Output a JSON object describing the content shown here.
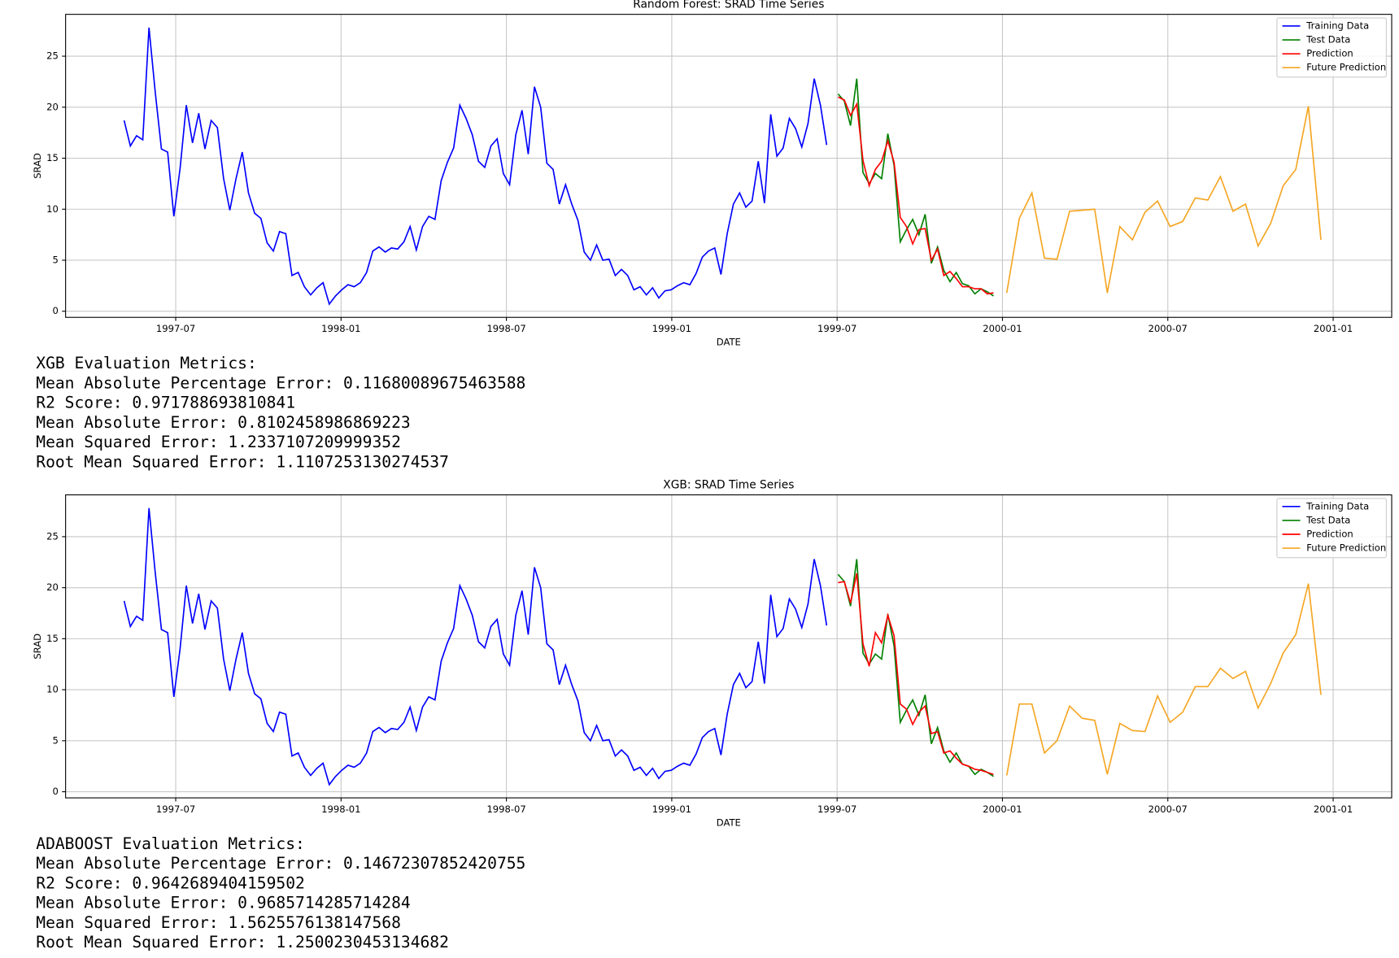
{
  "chart_data": [
    {
      "type": "line",
      "title": "Random Forest: SRAD Time Series",
      "xlabel": "DATE",
      "ylabel": "SRAD",
      "xlim": [
        1997.167,
        2001.177
      ],
      "ylim": [
        -0.6,
        29.1
      ],
      "xticks": [
        {
          "value": 1997.5,
          "label": "1997-07"
        },
        {
          "value": 1998.0,
          "label": "1998-01"
        },
        {
          "value": 1998.5,
          "label": "1998-07"
        },
        {
          "value": 1999.0,
          "label": "1999-01"
        },
        {
          "value": 1999.5,
          "label": "1999-07"
        },
        {
          "value": 2000.0,
          "label": "2000-01"
        },
        {
          "value": 2000.5,
          "label": "2000-07"
        },
        {
          "value": 2001.0,
          "label": "2001-01"
        }
      ],
      "yticks": [
        0,
        5,
        10,
        15,
        20,
        25
      ],
      "grid": true,
      "legend": "upper right",
      "series": [
        {
          "name": "Training Data",
          "color": "#0000ff",
          "x": [
            1997.344,
            1997.3628,
            1997.3816,
            1997.4004,
            1997.4192,
            1997.438,
            1997.4568,
            1997.4756,
            1997.4944,
            1997.5132,
            1997.532,
            1997.5508,
            1997.5696,
            1997.5884,
            1997.6072,
            1997.626,
            1997.6448,
            1997.6636,
            1997.6824,
            1997.7012,
            1997.72,
            1997.7388,
            1997.7576,
            1997.7764,
            1997.7952,
            1997.814,
            1997.8328,
            1997.8516,
            1997.8704,
            1997.8892,
            1997.908,
            1997.9268,
            1997.9456,
            1997.9644,
            1997.9832,
            1998.002,
            1998.0208,
            1998.0396,
            1998.0584,
            1998.0772,
            1998.096,
            1998.1148,
            1998.1336,
            1998.1524,
            1998.1712,
            1998.19,
            1998.2088,
            1998.2276,
            1998.2464,
            1998.2652,
            1998.284,
            1998.3028,
            1998.3216,
            1998.3404,
            1998.3592,
            1998.378,
            1998.3968,
            1998.4156,
            1998.4344,
            1998.4532,
            1998.472,
            1998.4908,
            1998.5096,
            1998.5284,
            1998.5472,
            1998.566,
            1998.5848,
            1998.6036,
            1998.6224,
            1998.6412,
            1998.66,
            1998.6788,
            1998.6976,
            1998.7164,
            1998.7352,
            1998.754,
            1998.7728,
            1998.7916,
            1998.8104,
            1998.8292,
            1998.848,
            1998.8668,
            1998.8856,
            1998.9044,
            1998.9232,
            1998.942,
            1998.9608,
            1998.9796,
            1998.9984,
            1999.0172,
            1999.036,
            1999.0548,
            1999.0736,
            1999.0924,
            1999.1112,
            1999.13,
            1999.1488,
            1999.1676,
            1999.1864,
            1999.2052,
            1999.224,
            1999.2428,
            1999.2616,
            1999.2804,
            1999.2992,
            1999.318,
            1999.3368,
            1999.3556,
            1999.3744,
            1999.3932,
            1999.412,
            1999.4308,
            1999.4496,
            1999.4684
          ],
          "values": [
            18.7,
            16.2,
            17.2,
            16.8,
            27.8,
            21.5,
            15.9,
            15.6,
            9.3,
            14,
            20.2,
            16.5,
            19.4,
            15.9,
            18.7,
            18.0,
            13,
            9.9,
            13,
            15.6,
            11.6,
            9.6,
            9.1,
            6.7,
            5.9,
            7.8,
            7.6,
            3.5,
            3.8,
            2.4,
            1.6,
            2.3,
            2.8,
            0.7,
            1.5,
            2.1,
            2.6,
            2.4,
            2.8,
            3.8,
            5.9,
            6.3,
            5.8,
            6.2,
            6.1,
            6.8,
            8.3,
            6.0,
            8.3,
            9.3,
            9.0,
            12.8,
            14.6,
            16.0,
            20.2,
            18.9,
            17.3,
            14.7,
            14.1,
            16.2,
            16.9,
            13.5,
            12.4,
            17.3,
            19.7,
            15.4,
            22.0,
            20.0,
            14.5,
            13.9,
            10.5,
            12.4,
            10.5,
            8.9,
            5.8,
            5.0,
            6.5,
            5.0,
            5.1,
            3.5,
            4.1,
            3.5,
            2.1,
            2.4,
            1.6,
            2.3,
            1.3,
            2.0,
            2.1,
            2.5,
            2.8,
            2.6,
            3.7,
            5.3,
            5.9,
            6.2,
            3.6,
            7.6,
            10.5,
            11.6,
            10.2,
            10.8,
            14.7,
            10.6,
            19.3,
            15.2,
            16.0,
            18.9,
            17.9,
            16.1,
            18.4,
            22.8,
            20.2,
            16.3
          ]
        },
        {
          "name": "Test Data",
          "color": "#008000",
          "x": [
            1999.503,
            1999.5218,
            1999.5406,
            1999.5594,
            1999.5782,
            1999.597,
            1999.6158,
            1999.6346,
            1999.6534,
            1999.6722,
            1999.691,
            1999.7098,
            1999.7286,
            1999.7474,
            1999.7662,
            1999.785,
            1999.8038,
            1999.8226,
            1999.8414,
            1999.8602,
            1999.879,
            1999.8978,
            1999.9166,
            1999.9354,
            1999.9542,
            1999.973
          ],
          "values": [
            21.3,
            20.6,
            18.2,
            22.8,
            13.6,
            12.5,
            13.5,
            13.0,
            17.4,
            14.3,
            6.8,
            8.0,
            9.0,
            7.5,
            9.5,
            4.7,
            6.3,
            4.0,
            2.9,
            3.8,
            2.7,
            2.5,
            1.7,
            2.2,
            1.9,
            1.5
          ]
        },
        {
          "name": "Prediction",
          "color": "#ff0000",
          "x": [
            1999.503,
            1999.5218,
            1999.5406,
            1999.5594,
            1999.5782,
            1999.597,
            1999.6158,
            1999.6346,
            1999.6534,
            1999.6722,
            1999.691,
            1999.7098,
            1999.7286,
            1999.7474,
            1999.7662,
            1999.785,
            1999.8038,
            1999.8226,
            1999.8414,
            1999.8602,
            1999.879,
            1999.8978,
            1999.9166,
            1999.9354,
            1999.9542,
            1999.973
          ],
          "values": [
            21.0,
            20.7,
            19.2,
            20.3,
            14.8,
            12.3,
            13.9,
            14.7,
            16.7,
            14.6,
            9.2,
            8.3,
            6.6,
            8.0,
            8.1,
            5.0,
            6.1,
            3.5,
            3.9,
            3.2,
            2.4,
            2.4,
            2.2,
            2.2,
            1.7,
            1.8
          ]
        },
        {
          "name": "Future Prediction",
          "color": "#f5a623",
          "x": [
            2000.013,
            2000.051,
            2000.089,
            2000.127,
            2000.165,
            2000.203,
            2000.241,
            2000.279,
            2000.317,
            2000.355,
            2000.393,
            2000.431,
            2000.469,
            2000.507,
            2000.545,
            2000.583,
            2000.621,
            2000.659,
            2000.697,
            2000.735,
            2000.773,
            2000.811,
            2000.849,
            2000.887,
            2000.925,
            2000.963
          ],
          "values": [
            1.8,
            9.1,
            11.6,
            5.2,
            5.1,
            9.8,
            9.9,
            10.0,
            1.8,
            8.3,
            7.0,
            9.7,
            10.8,
            8.3,
            8.8,
            11.1,
            10.9,
            13.2,
            9.8,
            10.5,
            6.4,
            8.6,
            12.3,
            13.9,
            20.1,
            7.0
          ]
        }
      ]
    },
    {
      "type": "line",
      "title": "XGB: SRAD Time Series",
      "xlabel": "DATE",
      "ylabel": "SRAD",
      "xlim": [
        1997.167,
        2001.177
      ],
      "ylim": [
        -0.6,
        29.1
      ],
      "xticks": [
        {
          "value": 1997.5,
          "label": "1997-07"
        },
        {
          "value": 1998.0,
          "label": "1998-01"
        },
        {
          "value": 1998.5,
          "label": "1998-07"
        },
        {
          "value": 1999.0,
          "label": "1999-01"
        },
        {
          "value": 1999.5,
          "label": "1999-07"
        },
        {
          "value": 2000.0,
          "label": "2000-01"
        },
        {
          "value": 2000.5,
          "label": "2000-07"
        },
        {
          "value": 2001.0,
          "label": "2001-01"
        }
      ],
      "yticks": [
        0,
        5,
        10,
        15,
        20,
        25
      ],
      "grid": true,
      "legend": "upper right",
      "series": [
        {
          "name": "Training Data",
          "color": "#0000ff",
          "x": [
            1997.344,
            1997.3628,
            1997.3816,
            1997.4004,
            1997.4192,
            1997.438,
            1997.4568,
            1997.4756,
            1997.4944,
            1997.5132,
            1997.532,
            1997.5508,
            1997.5696,
            1997.5884,
            1997.6072,
            1997.626,
            1997.6448,
            1997.6636,
            1997.6824,
            1997.7012,
            1997.72,
            1997.7388,
            1997.7576,
            1997.7764,
            1997.7952,
            1997.814,
            1997.8328,
            1997.8516,
            1997.8704,
            1997.8892,
            1997.908,
            1997.9268,
            1997.9456,
            1997.9644,
            1997.9832,
            1998.002,
            1998.0208,
            1998.0396,
            1998.0584,
            1998.0772,
            1998.096,
            1998.1148,
            1998.1336,
            1998.1524,
            1998.1712,
            1998.19,
            1998.2088,
            1998.2276,
            1998.2464,
            1998.2652,
            1998.284,
            1998.3028,
            1998.3216,
            1998.3404,
            1998.3592,
            1998.378,
            1998.3968,
            1998.4156,
            1998.4344,
            1998.4532,
            1998.472,
            1998.4908,
            1998.5096,
            1998.5284,
            1998.5472,
            1998.566,
            1998.5848,
            1998.6036,
            1998.6224,
            1998.6412,
            1998.66,
            1998.6788,
            1998.6976,
            1998.7164,
            1998.7352,
            1998.754,
            1998.7728,
            1998.7916,
            1998.8104,
            1998.8292,
            1998.848,
            1998.8668,
            1998.8856,
            1998.9044,
            1998.9232,
            1998.942,
            1998.9608,
            1998.9796,
            1998.9984,
            1999.0172,
            1999.036,
            1999.0548,
            1999.0736,
            1999.0924,
            1999.1112,
            1999.13,
            1999.1488,
            1999.1676,
            1999.1864,
            1999.2052,
            1999.224,
            1999.2428,
            1999.2616,
            1999.2804,
            1999.2992,
            1999.318,
            1999.3368,
            1999.3556,
            1999.3744,
            1999.3932,
            1999.412,
            1999.4308,
            1999.4496,
            1999.4684
          ],
          "values": [
            18.7,
            16.2,
            17.2,
            16.8,
            27.8,
            21.5,
            15.9,
            15.6,
            9.3,
            14,
            20.2,
            16.5,
            19.4,
            15.9,
            18.7,
            18.0,
            13,
            9.9,
            13,
            15.6,
            11.6,
            9.6,
            9.1,
            6.7,
            5.9,
            7.8,
            7.6,
            3.5,
            3.8,
            2.4,
            1.6,
            2.3,
            2.8,
            0.7,
            1.5,
            2.1,
            2.6,
            2.4,
            2.8,
            3.8,
            5.9,
            6.3,
            5.8,
            6.2,
            6.1,
            6.8,
            8.3,
            6.0,
            8.3,
            9.3,
            9.0,
            12.8,
            14.6,
            16.0,
            20.2,
            18.9,
            17.3,
            14.7,
            14.1,
            16.2,
            16.9,
            13.5,
            12.4,
            17.3,
            19.7,
            15.4,
            22.0,
            20.0,
            14.5,
            13.9,
            10.5,
            12.4,
            10.5,
            8.9,
            5.8,
            5.0,
            6.5,
            5.0,
            5.1,
            3.5,
            4.1,
            3.5,
            2.1,
            2.4,
            1.6,
            2.3,
            1.3,
            2.0,
            2.1,
            2.5,
            2.8,
            2.6,
            3.7,
            5.3,
            5.9,
            6.2,
            3.6,
            7.6,
            10.5,
            11.6,
            10.2,
            10.8,
            14.7,
            10.6,
            19.3,
            15.2,
            16.0,
            18.9,
            17.9,
            16.1,
            18.4,
            22.8,
            20.2,
            16.3
          ]
        },
        {
          "name": "Test Data",
          "color": "#008000",
          "x": [
            1999.503,
            1999.5218,
            1999.5406,
            1999.5594,
            1999.5782,
            1999.597,
            1999.6158,
            1999.6346,
            1999.6534,
            1999.6722,
            1999.691,
            1999.7098,
            1999.7286,
            1999.7474,
            1999.7662,
            1999.785,
            1999.8038,
            1999.8226,
            1999.8414,
            1999.8602,
            1999.879,
            1999.8978,
            1999.9166,
            1999.9354,
            1999.9542,
            1999.973
          ],
          "values": [
            21.3,
            20.6,
            18.2,
            22.8,
            13.6,
            12.5,
            13.5,
            13.0,
            17.4,
            14.3,
            6.8,
            8.0,
            9.0,
            7.5,
            9.5,
            4.7,
            6.3,
            4.0,
            2.9,
            3.8,
            2.7,
            2.5,
            1.7,
            2.2,
            1.9,
            1.5
          ]
        },
        {
          "name": "Prediction",
          "color": "#ff0000",
          "x": [
            1999.503,
            1999.5218,
            1999.5406,
            1999.5594,
            1999.5782,
            1999.597,
            1999.6158,
            1999.6346,
            1999.6534,
            1999.6722,
            1999.691,
            1999.7098,
            1999.7286,
            1999.7474,
            1999.7662,
            1999.785,
            1999.8038,
            1999.8226,
            1999.8414,
            1999.8602,
            1999.879,
            1999.8978,
            1999.9166,
            1999.9354,
            1999.9542,
            1999.973
          ],
          "values": [
            20.5,
            20.6,
            18.5,
            21.4,
            14.5,
            12.3,
            15.6,
            14.6,
            17.3,
            15.3,
            8.6,
            8.1,
            6.6,
            7.8,
            8.4,
            5.7,
            5.9,
            3.8,
            4.0,
            3.3,
            2.7,
            2.5,
            2.2,
            2.1,
            1.9,
            1.7
          ]
        },
        {
          "name": "Future Prediction",
          "color": "#f5a623",
          "x": [
            2000.013,
            2000.051,
            2000.089,
            2000.127,
            2000.165,
            2000.203,
            2000.241,
            2000.279,
            2000.317,
            2000.355,
            2000.393,
            2000.431,
            2000.469,
            2000.507,
            2000.545,
            2000.583,
            2000.621,
            2000.659,
            2000.697,
            2000.735,
            2000.773,
            2000.811,
            2000.849,
            2000.887,
            2000.925,
            2000.963
          ],
          "values": [
            1.6,
            8.6,
            8.6,
            3.8,
            5.0,
            8.4,
            7.2,
            7.0,
            1.7,
            6.7,
            6.0,
            5.9,
            9.4,
            6.8,
            7.8,
            10.3,
            10.3,
            12.1,
            11.1,
            11.8,
            8.2,
            10.6,
            13.6,
            15.4,
            20.4,
            9.5
          ]
        }
      ]
    }
  ],
  "text_blocks": [
    {
      "heading": "XGB Evaluation Metrics:",
      "lines": [
        "Mean Absolute Percentage Error: 0.11680089675463588",
        "R2 Score: 0.971788693810841",
        "Mean Absolute Error: 0.8102458986869223",
        "Mean Squared Error: 1.2337107209999352",
        "Root Mean Squared Error: 1.1107253130274537"
      ]
    },
    {
      "heading": "ADABOOST Evaluation Metrics:",
      "lines": [
        "Mean Absolute Percentage Error: 0.14672307852420755",
        "R2 Score: 0.9642689404159502",
        "Mean Absolute Error: 0.9685714285714284",
        "Mean Squared Error: 1.5625576138147568",
        "Root Mean Squared Error: 1.2500230453134682"
      ]
    }
  ]
}
